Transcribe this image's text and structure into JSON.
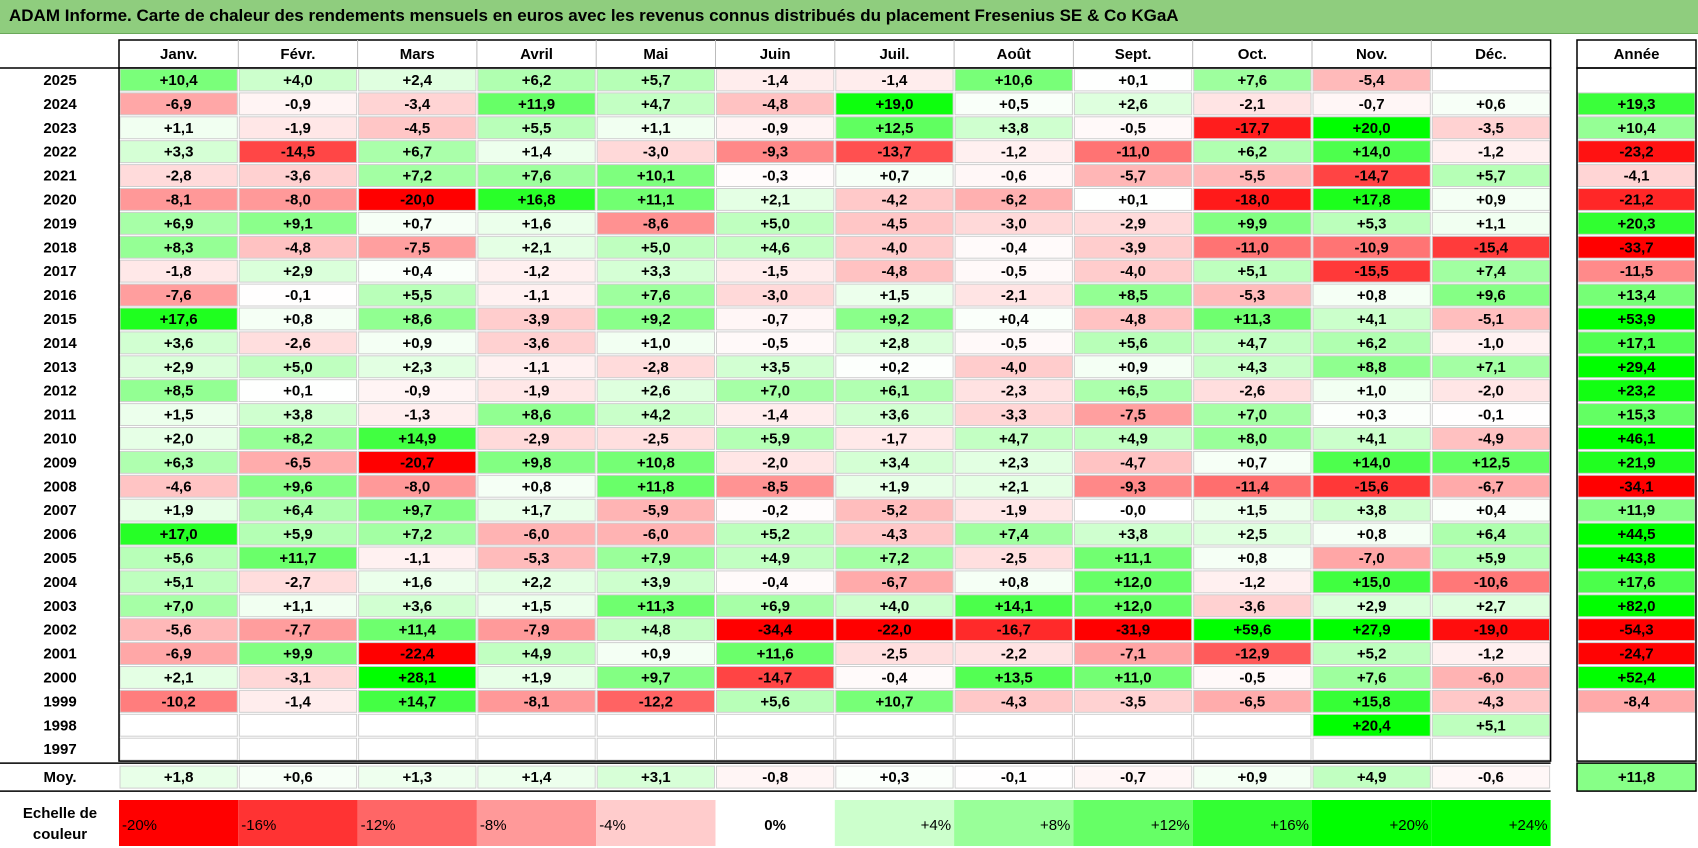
{
  "title": "ADAM Informe. Carte de chaleur des rendements mensuels en euros avec les revenus connus distribués du placement Fresenius SE & Co KGaA",
  "chart_data": {
    "type": "heatmap",
    "months": [
      "Janv.",
      "Févr.",
      "Mars",
      "Avril",
      "Mai",
      "Juin",
      "Juil.",
      "Août",
      "Sept.",
      "Oct.",
      "Nov.",
      "Déc."
    ],
    "year_header": "Année",
    "rows": [
      {
        "year": "2025",
        "values": [
          "+10,4",
          "+4,0",
          "+2,4",
          "+6,2",
          "+5,7",
          "-1,4",
          "-1,4",
          "+10,6",
          "+0,1",
          "+7,6",
          "-5,4",
          ""
        ],
        "annual": ""
      },
      {
        "year": "2024",
        "values": [
          "-6,9",
          "-0,9",
          "-3,4",
          "+11,9",
          "+4,7",
          "-4,8",
          "+19,0",
          "+0,5",
          "+2,6",
          "-2,1",
          "-0,7",
          "+0,6"
        ],
        "annual": "+19,3"
      },
      {
        "year": "2023",
        "values": [
          "+1,1",
          "-1,9",
          "-4,5",
          "+5,5",
          "+1,1",
          "-0,9",
          "+12,5",
          "+3,8",
          "-0,5",
          "-17,7",
          "+20,0",
          "-3,5"
        ],
        "annual": "+10,4"
      },
      {
        "year": "2022",
        "values": [
          "+3,3",
          "-14,5",
          "+6,7",
          "+1,4",
          "-3,0",
          "-9,3",
          "-13,7",
          "-1,2",
          "-11,0",
          "+6,2",
          "+14,0",
          "-1,2"
        ],
        "annual": "-23,2"
      },
      {
        "year": "2021",
        "values": [
          "-2,8",
          "-3,6",
          "+7,2",
          "+7,6",
          "+10,1",
          "-0,3",
          "+0,7",
          "-0,6",
          "-5,7",
          "-5,5",
          "-14,7",
          "+5,7"
        ],
        "annual": "-4,1"
      },
      {
        "year": "2020",
        "values": [
          "-8,1",
          "-8,0",
          "-20,0",
          "+16,8",
          "+11,1",
          "+2,1",
          "-4,2",
          "-6,2",
          "+0,1",
          "-18,0",
          "+17,8",
          "+0,9"
        ],
        "annual": "-21,2"
      },
      {
        "year": "2019",
        "values": [
          "+6,9",
          "+9,1",
          "+0,7",
          "+1,6",
          "-8,6",
          "+5,0",
          "-4,5",
          "-3,0",
          "-2,9",
          "+9,9",
          "+5,3",
          "+1,1"
        ],
        "annual": "+20,3"
      },
      {
        "year": "2018",
        "values": [
          "+8,3",
          "-4,8",
          "-7,5",
          "+2,1",
          "+5,0",
          "+4,6",
          "-4,0",
          "-0,4",
          "-3,9",
          "-11,0",
          "-10,9",
          "-15,4"
        ],
        "annual": "-33,7"
      },
      {
        "year": "2017",
        "values": [
          "-1,8",
          "+2,9",
          "+0,4",
          "-1,2",
          "+3,3",
          "-1,5",
          "-4,8",
          "-0,5",
          "-4,0",
          "+5,1",
          "-15,5",
          "+7,4"
        ],
        "annual": "-11,5"
      },
      {
        "year": "2016",
        "values": [
          "-7,6",
          "-0,1",
          "+5,5",
          "-1,1",
          "+7,6",
          "-3,0",
          "+1,5",
          "-2,1",
          "+8,5",
          "-5,3",
          "+0,8",
          "+9,6"
        ],
        "annual": "+13,4"
      },
      {
        "year": "2015",
        "values": [
          "+17,6",
          "+0,8",
          "+8,6",
          "-3,9",
          "+9,2",
          "-0,7",
          "+9,2",
          "+0,4",
          "-4,8",
          "+11,3",
          "+4,1",
          "-5,1"
        ],
        "annual": "+53,9"
      },
      {
        "year": "2014",
        "values": [
          "+3,6",
          "-2,6",
          "+0,9",
          "-3,6",
          "+1,0",
          "-0,5",
          "+2,8",
          "-0,5",
          "+5,6",
          "+4,7",
          "+6,2",
          "-1,0"
        ],
        "annual": "+17,1"
      },
      {
        "year": "2013",
        "values": [
          "+2,9",
          "+5,0",
          "+2,3",
          "-1,1",
          "-2,8",
          "+3,5",
          "+0,2",
          "-4,0",
          "+0,9",
          "+4,3",
          "+8,8",
          "+7,1"
        ],
        "annual": "+29,4"
      },
      {
        "year": "2012",
        "values": [
          "+8,5",
          "+0,1",
          "-0,9",
          "-1,9",
          "+2,6",
          "+7,0",
          "+6,1",
          "-2,3",
          "+6,5",
          "-2,6",
          "+1,0",
          "-2,0"
        ],
        "annual": "+23,2"
      },
      {
        "year": "2011",
        "values": [
          "+1,5",
          "+3,8",
          "-1,3",
          "+8,6",
          "+4,2",
          "-1,4",
          "+3,6",
          "-3,3",
          "-7,5",
          "+7,0",
          "+0,3",
          "-0,1"
        ],
        "annual": "+15,3"
      },
      {
        "year": "2010",
        "values": [
          "+2,0",
          "+8,2",
          "+14,9",
          "-2,9",
          "-2,5",
          "+5,9",
          "-1,7",
          "+4,7",
          "+4,9",
          "+8,0",
          "+4,1",
          "-4,9"
        ],
        "annual": "+46,1"
      },
      {
        "year": "2009",
        "values": [
          "+6,3",
          "-6,5",
          "-20,7",
          "+9,8",
          "+10,8",
          "-2,0",
          "+3,4",
          "+2,3",
          "-4,7",
          "+0,7",
          "+14,0",
          "+12,5"
        ],
        "annual": "+21,9"
      },
      {
        "year": "2008",
        "values": [
          "-4,6",
          "+9,6",
          "-8,0",
          "+0,8",
          "+11,8",
          "-8,5",
          "+1,9",
          "+2,1",
          "-9,3",
          "-11,4",
          "-15,6",
          "-6,7"
        ],
        "annual": "-34,1"
      },
      {
        "year": "2007",
        "values": [
          "+1,9",
          "+6,4",
          "+9,7",
          "+1,7",
          "-5,9",
          "-0,2",
          "-5,2",
          "-1,9",
          "-0,0",
          "+1,5",
          "+3,8",
          "+0,4"
        ],
        "annual": "+11,9"
      },
      {
        "year": "2006",
        "values": [
          "+17,0",
          "+5,9",
          "+7,2",
          "-6,0",
          "-6,0",
          "+5,2",
          "-4,3",
          "+7,4",
          "+3,8",
          "+2,5",
          "+0,8",
          "+6,4"
        ],
        "annual": "+44,5"
      },
      {
        "year": "2005",
        "values": [
          "+5,6",
          "+11,7",
          "-1,1",
          "-5,3",
          "+7,9",
          "+4,9",
          "+7,2",
          "-2,5",
          "+11,1",
          "+0,8",
          "-7,0",
          "+5,9"
        ],
        "annual": "+43,8"
      },
      {
        "year": "2004",
        "values": [
          "+5,1",
          "-2,7",
          "+1,6",
          "+2,2",
          "+3,9",
          "-0,4",
          "-6,7",
          "+0,8",
          "+12,0",
          "-1,2",
          "+15,0",
          "-10,6"
        ],
        "annual": "+17,6"
      },
      {
        "year": "2003",
        "values": [
          "+7,0",
          "+1,1",
          "+3,6",
          "+1,5",
          "+11,3",
          "+6,9",
          "+4,0",
          "+14,1",
          "+12,0",
          "-3,6",
          "+2,9",
          "+2,7"
        ],
        "annual": "+82,0"
      },
      {
        "year": "2002",
        "values": [
          "-5,6",
          "-7,7",
          "+11,4",
          "-7,9",
          "+4,8",
          "-34,4",
          "-22,0",
          "-16,7",
          "-31,9",
          "+59,6",
          "+27,9",
          "-19,0"
        ],
        "annual": "-54,3"
      },
      {
        "year": "2001",
        "values": [
          "-6,9",
          "+9,9",
          "-22,4",
          "+4,9",
          "+0,9",
          "+11,6",
          "-2,5",
          "-2,2",
          "-7,1",
          "-12,9",
          "+5,2",
          "-1,2"
        ],
        "annual": "-24,7"
      },
      {
        "year": "2000",
        "values": [
          "+2,1",
          "-3,1",
          "+28,1",
          "+1,9",
          "+9,7",
          "-14,7",
          "-0,4",
          "+13,5",
          "+11,0",
          "-0,5",
          "+7,6",
          "-6,0"
        ],
        "annual": "+52,4"
      },
      {
        "year": "1999",
        "values": [
          "-10,2",
          "-1,4",
          "+14,7",
          "-8,1",
          "-12,2",
          "+5,6",
          "+10,7",
          "-4,3",
          "-3,5",
          "-6,5",
          "+15,8",
          "-4,3"
        ],
        "annual": "-8,4"
      },
      {
        "year": "1998",
        "values": [
          "",
          "",
          "",
          "",
          "",
          "",
          "",
          "",
          "",
          "",
          "+20,4",
          "+5,1"
        ],
        "annual": ""
      },
      {
        "year": "1997",
        "values": [
          "",
          "",
          "",
          "",
          "",
          "",
          "",
          "",
          "",
          "",
          "",
          ""
        ],
        "annual": ""
      }
    ],
    "average": {
      "label": "Moy.",
      "values": [
        "+1,8",
        "+0,6",
        "+1,3",
        "+1,4",
        "+3,1",
        "-0,8",
        "+0,3",
        "-0,1",
        "-0,7",
        "+0,9",
        "+4,9",
        "-0,6"
      ],
      "annual": "+11,8"
    },
    "scale": {
      "label_line1": "Echelle de",
      "label_line2": "couleur",
      "steps": [
        "-20%",
        "-16%",
        "-12%",
        "-8%",
        "-4%",
        "0%",
        "+4%",
        "+8%",
        "+12%",
        "+16%",
        "+20%",
        "+24%"
      ],
      "step_values": [
        -20,
        -16,
        -12,
        -8,
        -4,
        0,
        4,
        8,
        12,
        16,
        20,
        24
      ]
    },
    "colors": {
      "negative_max": "#ff0000",
      "neutral": "#ffffff",
      "positive_max": "#00ff00",
      "title_bar": "#8fcd7e"
    }
  }
}
